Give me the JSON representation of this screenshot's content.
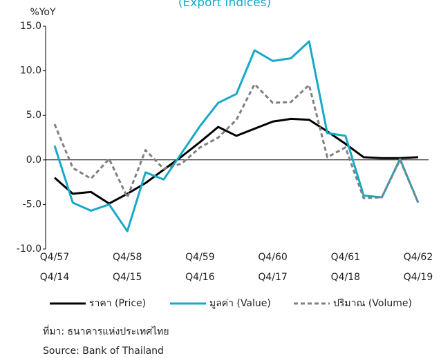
{
  "chart_data": {
    "type": "line",
    "title": "(Export Indices)",
    "y_label": "%YoY",
    "categories": [
      [
        "Q4/57",
        "Q4/14"
      ],
      null,
      null,
      null,
      [
        "Q4/58",
        "Q4/15"
      ],
      null,
      null,
      null,
      [
        "Q4/59",
        "Q4/16"
      ],
      null,
      null,
      null,
      [
        "Q4/60",
        "Q4/17"
      ],
      null,
      null,
      null,
      [
        "Q4/61",
        "Q4/18"
      ],
      null,
      null,
      null,
      [
        "Q4/62",
        "Q4/19"
      ]
    ],
    "series": [
      {
        "name": "ราคา (Price)",
        "color": "#000000",
        "style": "solid",
        "values": [
          -2.0,
          -3.8,
          -3.6,
          -4.9,
          -3.8,
          -2.6,
          -1.1,
          0.4,
          2.0,
          3.7,
          2.7,
          3.5,
          4.3,
          4.6,
          4.5,
          3.2,
          1.8,
          0.3,
          0.2,
          0.2,
          0.3
        ]
      },
      {
        "name": "มูลค่า (Value)",
        "color": "#17a9c9",
        "style": "solid",
        "values": [
          1.6,
          -4.8,
          -5.7,
          -5.0,
          -8.0,
          -1.4,
          -2.2,
          0.8,
          3.8,
          6.4,
          7.4,
          12.3,
          11.1,
          11.4,
          13.3,
          3.0,
          2.7,
          -4.0,
          -4.2,
          0.1,
          -4.8
        ]
      },
      {
        "name": "ปริมาณ (Volume)",
        "color": "#808080",
        "style": "dashed",
        "values": [
          4.0,
          -0.9,
          -2.1,
          0.1,
          -4.2,
          1.1,
          -1.0,
          -0.4,
          1.4,
          2.5,
          4.5,
          8.5,
          6.4,
          6.5,
          8.4,
          0.3,
          1.4,
          -4.3,
          -4.2,
          0.0,
          -4.8
        ]
      }
    ],
    "ylim": [
      -10,
      15
    ],
    "yticks": [
      {
        "value": 15,
        "label": "15.0"
      },
      {
        "value": 10,
        "label": "10.0"
      },
      {
        "value": 5,
        "label": "5.0"
      },
      {
        "value": 0,
        "label": "0.0"
      },
      {
        "value": -5,
        "label": "-5.0"
      },
      {
        "value": -10,
        "label": "-10.0"
      }
    ],
    "legend": "bottom",
    "notes": [
      "ที่มา: ธนาคารแห่งประเทศไทย",
      "Source: Bank of Thailand"
    ]
  }
}
